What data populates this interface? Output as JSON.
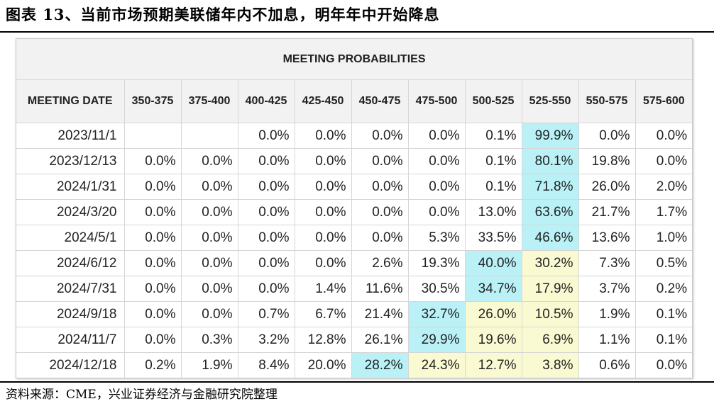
{
  "figure_title": "图表 13、当前市场预期美联储年内不加息，明年年中开始降息",
  "source_note": "资料来源：CME，兴业证券经济与金融研究院整理",
  "table": {
    "title": "MEETING PROBABILITIES",
    "header_first": "MEETING DATE",
    "columns": [
      "350-375",
      "375-400",
      "400-425",
      "425-450",
      "450-475",
      "475-500",
      "500-525",
      "525-550",
      "550-575",
      "575-600"
    ],
    "highlight_colors": {
      "max": "#b9f1f6",
      "second": "#fafad2"
    },
    "rows": [
      {
        "date": "2023/11/1",
        "values": [
          "",
          "",
          "0.0%",
          "0.0%",
          "0.0%",
          "0.0%",
          "0.1%",
          "99.9%",
          "0.0%",
          "0.0%"
        ],
        "hl": [
          "",
          "",
          "",
          "",
          "",
          "",
          "",
          "b",
          "",
          ""
        ]
      },
      {
        "date": "2023/12/13",
        "values": [
          "0.0%",
          "0.0%",
          "0.0%",
          "0.0%",
          "0.0%",
          "0.0%",
          "0.1%",
          "80.1%",
          "19.8%",
          "0.0%"
        ],
        "hl": [
          "",
          "",
          "",
          "",
          "",
          "",
          "",
          "b",
          "",
          ""
        ]
      },
      {
        "date": "2024/1/31",
        "values": [
          "0.0%",
          "0.0%",
          "0.0%",
          "0.0%",
          "0.0%",
          "0.0%",
          "0.1%",
          "71.8%",
          "26.0%",
          "2.0%"
        ],
        "hl": [
          "",
          "",
          "",
          "",
          "",
          "",
          "",
          "b",
          "",
          ""
        ]
      },
      {
        "date": "2024/3/20",
        "values": [
          "0.0%",
          "0.0%",
          "0.0%",
          "0.0%",
          "0.0%",
          "0.0%",
          "13.0%",
          "63.6%",
          "21.7%",
          "1.7%"
        ],
        "hl": [
          "",
          "",
          "",
          "",
          "",
          "",
          "",
          "b",
          "",
          ""
        ]
      },
      {
        "date": "2024/5/1",
        "values": [
          "0.0%",
          "0.0%",
          "0.0%",
          "0.0%",
          "0.0%",
          "5.3%",
          "33.5%",
          "46.6%",
          "13.6%",
          "1.0%"
        ],
        "hl": [
          "",
          "",
          "",
          "",
          "",
          "",
          "",
          "b",
          "",
          ""
        ]
      },
      {
        "date": "2024/6/12",
        "values": [
          "0.0%",
          "0.0%",
          "0.0%",
          "0.0%",
          "2.6%",
          "19.3%",
          "40.0%",
          "30.2%",
          "7.3%",
          "0.5%"
        ],
        "hl": [
          "",
          "",
          "",
          "",
          "",
          "",
          "b",
          "y",
          "",
          ""
        ]
      },
      {
        "date": "2024/7/31",
        "values": [
          "0.0%",
          "0.0%",
          "0.0%",
          "1.4%",
          "11.6%",
          "30.5%",
          "34.7%",
          "17.9%",
          "3.7%",
          "0.2%"
        ],
        "hl": [
          "",
          "",
          "",
          "",
          "",
          "",
          "b",
          "y",
          "",
          ""
        ]
      },
      {
        "date": "2024/9/18",
        "values": [
          "0.0%",
          "0.0%",
          "0.7%",
          "6.7%",
          "21.4%",
          "32.7%",
          "26.0%",
          "10.5%",
          "1.9%",
          "0.1%"
        ],
        "hl": [
          "",
          "",
          "",
          "",
          "",
          "b",
          "y",
          "y",
          "",
          ""
        ]
      },
      {
        "date": "2024/11/7",
        "values": [
          "0.0%",
          "0.3%",
          "3.2%",
          "12.8%",
          "26.1%",
          "29.9%",
          "19.6%",
          "6.9%",
          "1.1%",
          "0.1%"
        ],
        "hl": [
          "",
          "",
          "",
          "",
          "",
          "b",
          "y",
          "y",
          "",
          ""
        ]
      },
      {
        "date": "2024/12/18",
        "values": [
          "0.2%",
          "1.9%",
          "8.4%",
          "20.0%",
          "28.2%",
          "24.3%",
          "12.7%",
          "3.8%",
          "0.6%",
          "0.0%"
        ],
        "hl": [
          "",
          "",
          "",
          "",
          "b",
          "y",
          "y",
          "y",
          "",
          ""
        ]
      }
    ]
  }
}
